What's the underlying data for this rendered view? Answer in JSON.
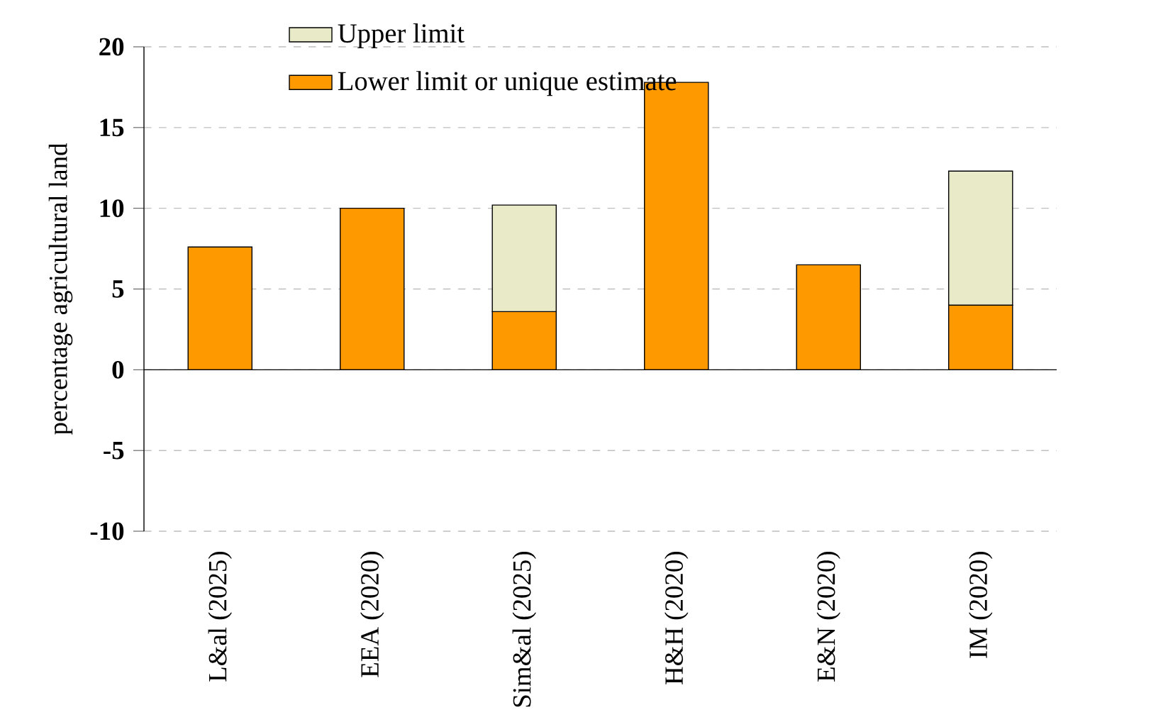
{
  "chart_data": {
    "type": "bar",
    "stacked": true,
    "ylabel": "percentage agricultural land",
    "categories": [
      "L&al (2025)",
      "EEA (2020)",
      "Sim&al (2025)",
      "H&H (2020)",
      "E&N (2020)",
      "IM (2020)"
    ],
    "series": [
      {
        "name": "Lower limit or unique estimate",
        "color": "#ff9900",
        "values": [
          7.6,
          10.0,
          3.6,
          17.8,
          6.5,
          4.0
        ]
      },
      {
        "name": "Upper limit",
        "color": "#e8eac8",
        "values": [
          null,
          null,
          6.6,
          null,
          null,
          8.3
        ]
      }
    ],
    "ylim": [
      -10,
      20
    ],
    "yticks": [
      -10,
      -5,
      0,
      5,
      10,
      15,
      20
    ],
    "grid": "y",
    "legend": "top left"
  }
}
